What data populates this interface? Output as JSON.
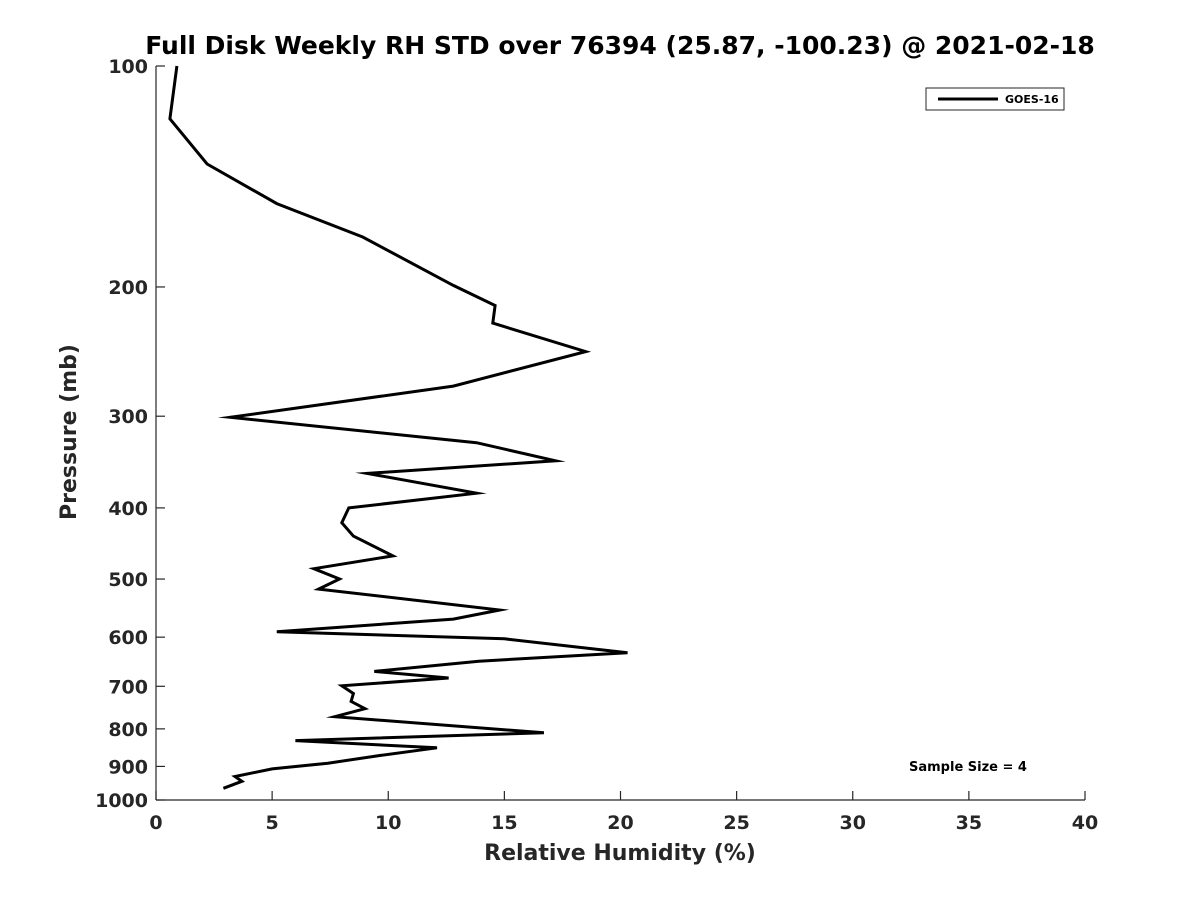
{
  "chart_data": {
    "type": "line",
    "title": "Full Disk Weekly RH STD over 76394 (25.87, -100.23) @ 2021-02-18",
    "xlabel": "Relative Humidity (%)",
    "ylabel": "Pressure (mb)",
    "xlim": [
      0,
      40
    ],
    "ylim": [
      100,
      1000
    ],
    "y_scale": "log",
    "y_reversed": true,
    "xticks": [
      0,
      5,
      10,
      15,
      20,
      25,
      30,
      35,
      40
    ],
    "yticks": [
      100,
      200,
      300,
      400,
      500,
      600,
      700,
      800,
      900,
      1000
    ],
    "grid": false,
    "legend_position": "top-right",
    "annotation": "Sample Size = 4",
    "series": [
      {
        "name": "GOES-16",
        "color": "#000000",
        "points": [
          [
            0.9,
            100
          ],
          [
            0.6,
            118
          ],
          [
            2.2,
            136
          ],
          [
            5.2,
            154
          ],
          [
            8.9,
            171
          ],
          [
            12.8,
            199
          ],
          [
            14.6,
            212
          ],
          [
            14.5,
            224
          ],
          [
            18.5,
            245
          ],
          [
            12.8,
            273
          ],
          [
            3.2,
            301
          ],
          [
            13.8,
            326
          ],
          [
            17.2,
            345
          ],
          [
            9.1,
            359
          ],
          [
            13.8,
            382
          ],
          [
            8.3,
            400
          ],
          [
            8.0,
            419
          ],
          [
            8.5,
            437
          ],
          [
            10.2,
            465
          ],
          [
            6.8,
            484
          ],
          [
            7.9,
            500
          ],
          [
            7.0,
            516
          ],
          [
            14.8,
            551
          ],
          [
            12.8,
            567
          ],
          [
            5.2,
            590
          ],
          [
            15.0,
            603
          ],
          [
            20.3,
            630
          ],
          [
            13.9,
            647
          ],
          [
            9.4,
            668
          ],
          [
            12.6,
            682
          ],
          [
            8.0,
            699
          ],
          [
            8.5,
            716
          ],
          [
            8.4,
            734
          ],
          [
            9.0,
            751
          ],
          [
            7.7,
            770
          ],
          [
            16.7,
            810
          ],
          [
            6.0,
            830
          ],
          [
            12.1,
            849
          ],
          [
            9.6,
            870
          ],
          [
            7.4,
            891
          ],
          [
            5.0,
            907
          ],
          [
            3.4,
            929
          ],
          [
            3.7,
            943
          ],
          [
            2.9,
            964
          ]
        ]
      }
    ]
  }
}
